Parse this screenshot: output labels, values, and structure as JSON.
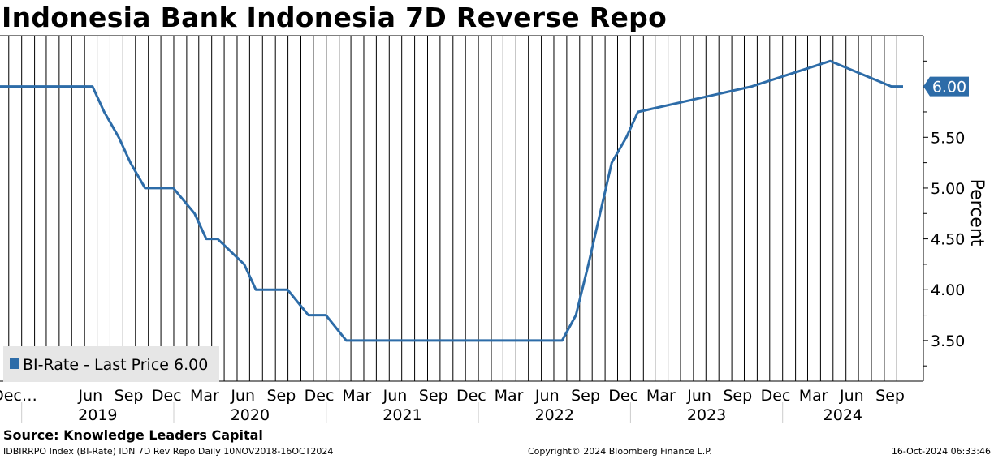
{
  "title": "Indonesia Bank Indonesia 7D Reverse Repo",
  "source": "Source: Knowledge Leaders Capital",
  "footer": {
    "left": "IDBIRRPO Index (BI-Rate) IDN 7D Rev Repo  Daily 10NOV2018-16OCT2024",
    "center": "Copyright© 2024 Bloomberg Finance L.P.",
    "right": "16-Oct-2024 06:33:46"
  },
  "chart_data": {
    "type": "line",
    "ylabel": "Percent",
    "ylim": [
      3.1,
      6.5
    ],
    "y_ticks": [
      "3.50",
      "4.00",
      "4.50",
      "5.00",
      "5.50"
    ],
    "y_tick_values": [
      3.5,
      4.0,
      4.5,
      5.0,
      5.5
    ],
    "grid": "vertical monthly",
    "x_range": [
      "2018-11-10",
      "2024-10-16"
    ],
    "last_price_label": "6.00",
    "last_price_value": 6.0,
    "legend": {
      "placement": "bottom-left",
      "label": "BI-Rate - Last Price 6.00"
    },
    "month_labels": [
      {
        "label": "Dec…",
        "date": "2018-12-15"
      },
      {
        "label": "Jun",
        "date": "2019-06-15"
      },
      {
        "label": "Sep",
        "date": "2019-09-15"
      },
      {
        "label": "Dec",
        "date": "2019-12-15"
      },
      {
        "label": "Mar",
        "date": "2020-03-15"
      },
      {
        "label": "Jun",
        "date": "2020-06-15"
      },
      {
        "label": "Sep",
        "date": "2020-09-15"
      },
      {
        "label": "Dec",
        "date": "2020-12-15"
      },
      {
        "label": "Mar",
        "date": "2021-03-15"
      },
      {
        "label": "Jun",
        "date": "2021-06-15"
      },
      {
        "label": "Sep",
        "date": "2021-09-15"
      },
      {
        "label": "Dec",
        "date": "2021-12-15"
      },
      {
        "label": "Mar",
        "date": "2022-03-15"
      },
      {
        "label": "Jun",
        "date": "2022-06-15"
      },
      {
        "label": "Sep",
        "date": "2022-09-15"
      },
      {
        "label": "Dec",
        "date": "2022-12-15"
      },
      {
        "label": "Mar",
        "date": "2023-03-15"
      },
      {
        "label": "Jun",
        "date": "2023-06-15"
      },
      {
        "label": "Sep",
        "date": "2023-09-15"
      },
      {
        "label": "Dec",
        "date": "2023-12-15"
      },
      {
        "label": "Mar",
        "date": "2024-03-15"
      },
      {
        "label": "Jun",
        "date": "2024-06-15"
      },
      {
        "label": "Sep",
        "date": "2024-09-15"
      }
    ],
    "year_labels": [
      "2019",
      "2020",
      "2021",
      "2022",
      "2023",
      "2024"
    ],
    "series": [
      {
        "color": "#2d6ca8",
        "x": [
          "2018-11-10",
          "2019-06-20",
          "2019-07-18",
          "2019-08-22",
          "2019-09-19",
          "2019-10-24",
          "2019-12-31",
          "2020-02-20",
          "2020-03-19",
          "2020-04-15",
          "2020-06-18",
          "2020-07-16",
          "2020-09-30",
          "2020-11-19",
          "2020-12-31",
          "2021-02-18",
          "2022-07-21",
          "2022-08-23",
          "2022-09-22",
          "2022-10-20",
          "2022-11-17",
          "2022-12-22",
          "2023-01-19",
          "2023-10-19",
          "2024-04-24",
          "2024-09-18",
          "2024-10-16"
        ],
        "values": [
          6.0,
          6.0,
          5.75,
          5.5,
          5.25,
          5.0,
          5.0,
          4.75,
          4.5,
          4.5,
          4.25,
          4.0,
          4.0,
          3.75,
          3.75,
          3.5,
          3.5,
          3.75,
          4.25,
          4.75,
          5.25,
          5.5,
          5.75,
          6.0,
          6.25,
          6.0,
          6.0
        ]
      }
    ]
  },
  "colors": {
    "line": "#2d6ca8",
    "grid": "#000000",
    "badge_bg": "#2d6ca8",
    "badge_text": "#ffffff",
    "legend_bg": "#e6e6e6"
  }
}
